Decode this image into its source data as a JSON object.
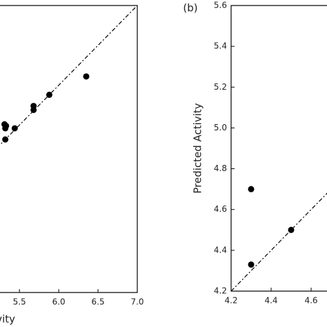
{
  "chart_data": [
    {
      "type": "scatter",
      "xlabel": "Observed Activity",
      "x": [
        6.35,
        5.88,
        5.68,
        5.68,
        5.31,
        5.33,
        5.32,
        5.44,
        5.32
      ],
      "values": [
        6.11,
        5.88,
        5.74,
        5.69,
        5.51,
        5.49,
        5.46,
        5.46,
        5.32
      ],
      "color": "#000000",
      "xlim": [
        3.4,
        7.0
      ],
      "ylim": [
        3.4,
        7.0
      ],
      "xticks": [
        {
          "value": 5.5,
          "label": "5.5"
        },
        {
          "value": 6.0,
          "label": "6.0"
        },
        {
          "value": 6.5,
          "label": "6.5"
        },
        {
          "value": 7.0,
          "label": "7.0"
        }
      ]
    },
    {
      "type": "scatter",
      "panel": "(b)",
      "ylabel": "Predicted Activity",
      "x": [
        4.3,
        4.3,
        4.5
      ],
      "values": [
        4.7,
        4.33,
        4.5
      ],
      "color": "#000000",
      "xlim": [
        4.2,
        5.6
      ],
      "ylim": [
        4.2,
        5.6
      ],
      "xticks": [
        4.2,
        4.4,
        4.6
      ],
      "yticks": [
        4.2,
        4.4,
        4.6,
        4.8,
        {
          "value": 5.0,
          "label": "5.0"
        },
        5.2,
        5.4,
        5.6
      ]
    }
  ]
}
